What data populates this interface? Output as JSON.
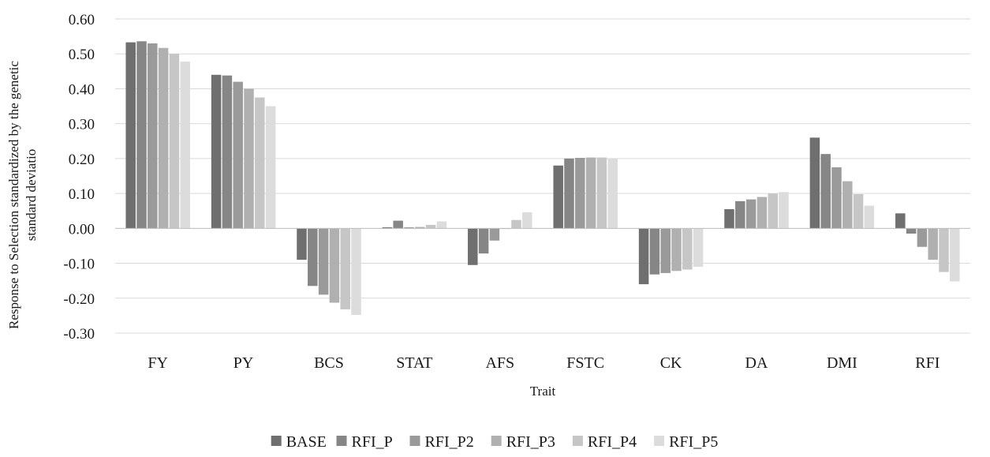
{
  "chart_data": {
    "type": "bar",
    "xlabel": "Trait",
    "ylabel_lines": [
      "Response to Selection standardized by the genetic",
      "standard deviatio"
    ],
    "ylim": [
      -0.3,
      0.6
    ],
    "ytick_step": 0.1,
    "ytick_labels": [
      "0.60",
      "0.50",
      "0.40",
      "0.30",
      "0.20",
      "0.10",
      "0.00",
      "-0.10",
      "-0.20",
      "-0.30"
    ],
    "grid": true,
    "legend_position": "bottom",
    "categories": [
      "FY",
      "PY",
      "BCS",
      "STAT",
      "AFS",
      "FSTC",
      "CK",
      "DA",
      "DMI",
      "RFI"
    ],
    "series": [
      {
        "name": "BASE",
        "color": "#6f6f6f",
        "values": [
          0.533,
          0.44,
          -0.09,
          0.003,
          -0.105,
          0.18,
          -0.16,
          0.055,
          0.26,
          0.043
        ]
      },
      {
        "name": "RFI_P",
        "color": "#868686",
        "values": [
          0.536,
          0.438,
          -0.165,
          0.022,
          -0.072,
          0.2,
          -0.132,
          0.078,
          0.213,
          -0.015
        ]
      },
      {
        "name": "RFI_P2",
        "color": "#9a9a9a",
        "values": [
          0.53,
          0.42,
          -0.19,
          0.003,
          -0.035,
          0.202,
          -0.128,
          0.083,
          0.175,
          -0.053
        ]
      },
      {
        "name": "RFI_P3",
        "color": "#b0b0b0",
        "values": [
          0.517,
          0.4,
          -0.213,
          0.004,
          0.0,
          0.203,
          -0.122,
          0.09,
          0.135,
          -0.09
        ]
      },
      {
        "name": "RFI_P4",
        "color": "#c6c6c6",
        "values": [
          0.5,
          0.375,
          -0.232,
          0.01,
          0.024,
          0.203,
          -0.118,
          0.1,
          0.098,
          -0.125
        ]
      },
      {
        "name": "RFI_P5",
        "color": "#dcdcdc",
        "values": [
          0.478,
          0.35,
          -0.248,
          0.02,
          0.046,
          0.2,
          -0.11,
          0.104,
          0.065,
          -0.152
        ]
      }
    ]
  }
}
